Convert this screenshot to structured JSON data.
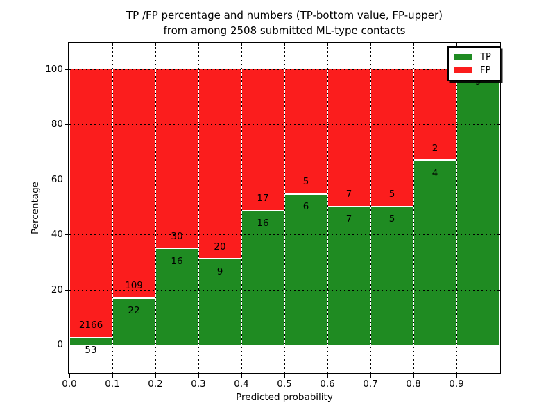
{
  "chart_data": {
    "type": "bar",
    "stacked": true,
    "unit": "percent of bin total",
    "title": "TP /FP percentage and numbers (TP-bottom value, FP-upper)",
    "subtitle": "from among 2508 submitted ML-type contacts",
    "xlabel": "Predicted probability",
    "ylabel": "Percentage",
    "total_contacts": 2508,
    "categories": [
      "0.0-0.1",
      "0.1-0.2",
      "0.2-0.3",
      "0.3-0.4",
      "0.4-0.5",
      "0.5-0.6",
      "0.6-0.7",
      "0.7-0.8",
      "0.8-0.9",
      "0.9-1.0"
    ],
    "series": [
      {
        "name": "TP",
        "color": "#1f8b22",
        "values": [
          53,
          22,
          16,
          9,
          16,
          6,
          7,
          5,
          4,
          9
        ]
      },
      {
        "name": "FP",
        "color": "#fb1d1d",
        "values": [
          2166,
          109,
          30,
          20,
          17,
          5,
          7,
          5,
          2,
          0
        ]
      }
    ],
    "tp_percent": [
      2.39,
      16.79,
      34.78,
      31.03,
      48.48,
      54.55,
      50.0,
      50.0,
      66.67,
      100.0
    ],
    "xticks": [
      "0.0",
      "0.1",
      "0.2",
      "0.3",
      "0.4",
      "0.5",
      "0.6",
      "0.7",
      "0.8",
      "0.9"
    ],
    "yticks": [
      0,
      20,
      40,
      60,
      80,
      100
    ],
    "xlim": [
      0.0,
      1.0
    ],
    "ylim": [
      -10.7,
      109.7
    ],
    "grid": "dotted both axes, drawn over bars",
    "legend_position": "upper right"
  },
  "legend": {
    "items": [
      {
        "label": "TP",
        "color": "#1f8b22"
      },
      {
        "label": "FP",
        "color": "#fb1d1d"
      }
    ]
  }
}
